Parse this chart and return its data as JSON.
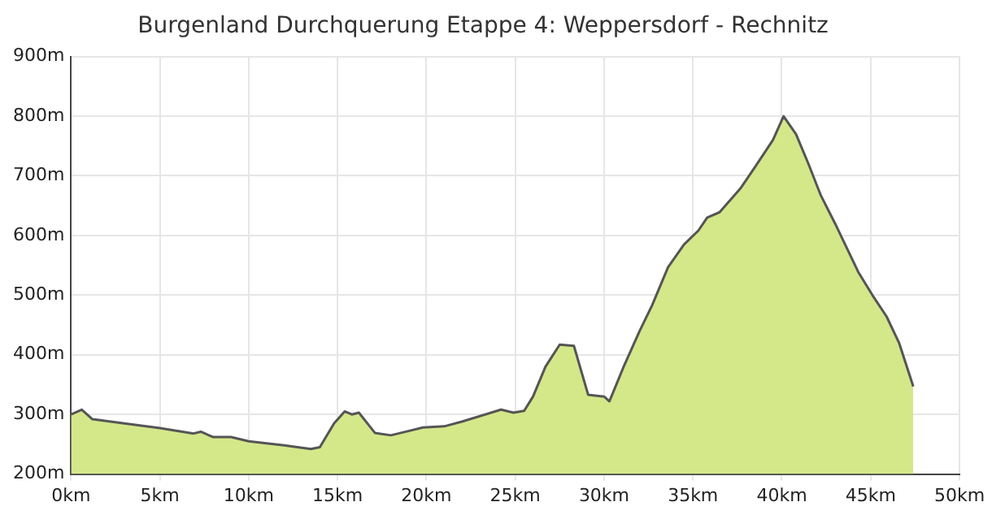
{
  "chart_data": {
    "type": "area",
    "title": "Burgenland Durchquerung Etappe 4: Weppersdorf - Rechnitz",
    "x": [
      0,
      0.6,
      1.2,
      3,
      5,
      6.9,
      7.3,
      8,
      9,
      10,
      12,
      13.5,
      14,
      14.8,
      15.4,
      15.8,
      16.2,
      17.1,
      18,
      19.8,
      21,
      22,
      24.2,
      24.9,
      25.5,
      26,
      26.7,
      27.5,
      28.3,
      29.1,
      30,
      30.3,
      31.1,
      32,
      32.7,
      33.6,
      34.5,
      35.3,
      35.8,
      36.5,
      37.7,
      38.5,
      39.5,
      40.1,
      40.8,
      41.5,
      42.2,
      43,
      44.3,
      45.1,
      45.9,
      46.6,
      47.4
    ],
    "series": [
      {
        "color": "#d4e88a",
        "values": [
          300,
          308,
          292,
          285,
          277,
          268,
          271,
          262,
          262,
          255,
          248,
          242,
          245,
          285,
          305,
          300,
          303,
          269,
          265,
          278,
          280,
          288,
          308,
          303,
          306,
          330,
          380,
          417,
          415,
          333,
          330,
          322,
          380,
          440,
          483,
          547,
          585,
          608,
          630,
          639,
          680,
          715,
          760,
          800,
          770,
          720,
          667,
          620,
          539,
          500,
          464,
          420,
          347
        ]
      }
    ],
    "xlim": [
      0,
      50
    ],
    "xticks": [
      {
        "value": 0,
        "label": "0km"
      },
      {
        "value": 5,
        "label": "5km"
      },
      {
        "value": 10,
        "label": "10km"
      },
      {
        "value": 15,
        "label": "15km"
      },
      {
        "value": 20,
        "label": "20km"
      },
      {
        "value": 25,
        "label": "25km"
      },
      {
        "value": 30,
        "label": "30km"
      },
      {
        "value": 35,
        "label": "35km"
      },
      {
        "value": 40,
        "label": "40km"
      },
      {
        "value": 45,
        "label": "45km"
      },
      {
        "value": 50,
        "label": "50km"
      }
    ],
    "ylim": [
      200,
      900
    ],
    "yticks": [
      {
        "value": 200,
        "label": "200m"
      },
      {
        "value": 300,
        "label": "300m"
      },
      {
        "value": 400,
        "label": "400m"
      },
      {
        "value": 500,
        "label": "500m"
      },
      {
        "value": 600,
        "label": "600m"
      },
      {
        "value": 700,
        "label": "700m"
      },
      {
        "value": 800,
        "label": "800m"
      },
      {
        "value": 900,
        "label": "900m"
      }
    ],
    "grid": true,
    "legend": false,
    "marker": "none",
    "line_style": "solid"
  }
}
